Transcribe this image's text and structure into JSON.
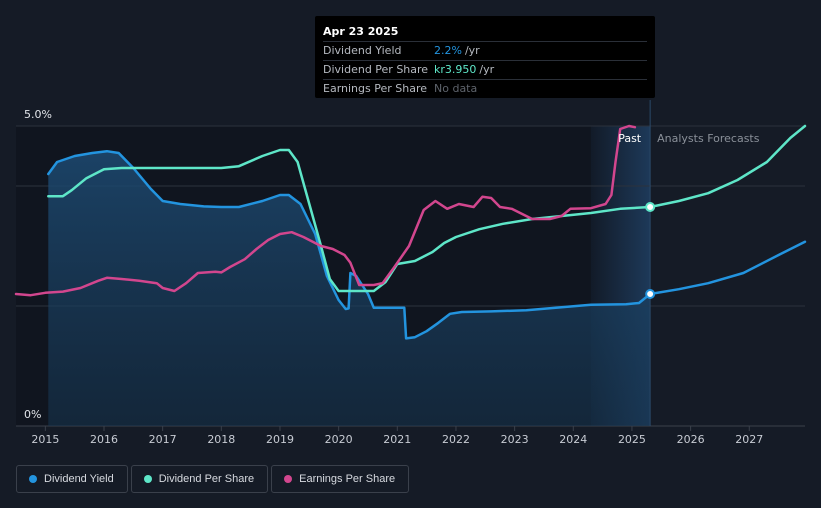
{
  "tooltip": {
    "date": "Apr 23 2025",
    "rows": [
      {
        "label": "Dividend Yield",
        "value": "2.2%",
        "unit": "/yr"
      },
      {
        "label": "Dividend Per Share",
        "value": "kr3.950",
        "unit": "/yr"
      },
      {
        "label": "Earnings Per Share",
        "value": "No data"
      }
    ]
  },
  "legend": [
    {
      "label": "Dividend Yield",
      "color": "#2394df"
    },
    {
      "label": "Dividend Per Share",
      "color": "#5ee6c8"
    },
    {
      "label": "Earnings Per Share",
      "color": "#d2468e"
    }
  ],
  "chart_data": {
    "type": "line",
    "title": "",
    "xlabel": "",
    "ylabel": "",
    "xlim": [
      2014.5,
      2027.95
    ],
    "ylim": [
      0,
      5.0
    ],
    "x_ticks": [
      "2015",
      "2016",
      "2017",
      "2018",
      "2019",
      "2020",
      "2021",
      "2022",
      "2023",
      "2024",
      "2025",
      "2026",
      "2027"
    ],
    "y_tick_labels": [
      {
        "value": 5.0,
        "label": "5.0%"
      },
      {
        "value": 0,
        "label": "0%"
      }
    ],
    "gridlines_y": [
      5.0,
      4.0,
      2.0
    ],
    "regions": {
      "past_label": "Past",
      "forecast_label": "Analysts Forecasts",
      "today": 2025.31,
      "shade_start": 2024.3
    },
    "marker_x": 2025.31,
    "series": [
      {
        "name": "Dividend Yield",
        "color": "#2394df",
        "points": [
          [
            2015.05,
            4.2
          ],
          [
            2015.2,
            4.4
          ],
          [
            2015.5,
            4.5
          ],
          [
            2015.8,
            4.55
          ],
          [
            2016.05,
            4.58
          ],
          [
            2016.25,
            4.55
          ],
          [
            2016.5,
            4.3
          ],
          [
            2016.8,
            3.95
          ],
          [
            2017.0,
            3.75
          ],
          [
            2017.3,
            3.7
          ],
          [
            2017.7,
            3.66
          ],
          [
            2018.0,
            3.65
          ],
          [
            2018.3,
            3.65
          ],
          [
            2018.7,
            3.75
          ],
          [
            2019.0,
            3.85
          ],
          [
            2019.15,
            3.85
          ],
          [
            2019.35,
            3.7
          ],
          [
            2019.6,
            3.2
          ],
          [
            2019.8,
            2.5
          ],
          [
            2020.0,
            2.1
          ],
          [
            2020.12,
            1.95
          ],
          [
            2020.17,
            1.96
          ],
          [
            2020.2,
            2.55
          ],
          [
            2020.3,
            2.5
          ],
          [
            2020.5,
            2.2
          ],
          [
            2020.6,
            1.97
          ],
          [
            2020.8,
            1.97
          ],
          [
            2021.0,
            1.97
          ],
          [
            2021.12,
            1.97
          ],
          [
            2021.15,
            1.46
          ],
          [
            2021.3,
            1.48
          ],
          [
            2021.5,
            1.58
          ],
          [
            2021.7,
            1.72
          ],
          [
            2021.9,
            1.87
          ],
          [
            2022.1,
            1.9
          ],
          [
            2022.6,
            1.91
          ],
          [
            2023.2,
            1.93
          ],
          [
            2023.8,
            1.98
          ],
          [
            2024.3,
            2.02
          ],
          [
            2024.9,
            2.03
          ],
          [
            2025.12,
            2.05
          ],
          [
            2025.31,
            2.2
          ],
          [
            2025.8,
            2.28
          ],
          [
            2026.3,
            2.38
          ],
          [
            2026.9,
            2.55
          ],
          [
            2027.5,
            2.85
          ],
          [
            2027.95,
            3.07
          ]
        ]
      },
      {
        "name": "Dividend Per Share",
        "color": "#5ee6c8",
        "points": [
          [
            2015.05,
            3.83
          ],
          [
            2015.3,
            3.83
          ],
          [
            2015.45,
            3.93
          ],
          [
            2015.7,
            4.13
          ],
          [
            2016.0,
            4.28
          ],
          [
            2016.3,
            4.3
          ],
          [
            2016.7,
            4.3
          ],
          [
            2017.5,
            4.3
          ],
          [
            2018.0,
            4.3
          ],
          [
            2018.3,
            4.33
          ],
          [
            2018.7,
            4.5
          ],
          [
            2019.0,
            4.6
          ],
          [
            2019.15,
            4.6
          ],
          [
            2019.3,
            4.4
          ],
          [
            2019.5,
            3.7
          ],
          [
            2019.7,
            3.0
          ],
          [
            2019.85,
            2.45
          ],
          [
            2020.0,
            2.25
          ],
          [
            2020.3,
            2.25
          ],
          [
            2020.6,
            2.25
          ],
          [
            2020.8,
            2.4
          ],
          [
            2021.0,
            2.7
          ],
          [
            2021.3,
            2.75
          ],
          [
            2021.6,
            2.9
          ],
          [
            2021.8,
            3.05
          ],
          [
            2022.0,
            3.15
          ],
          [
            2022.4,
            3.28
          ],
          [
            2022.8,
            3.37
          ],
          [
            2023.3,
            3.45
          ],
          [
            2023.8,
            3.5
          ],
          [
            2024.3,
            3.55
          ],
          [
            2024.8,
            3.62
          ],
          [
            2025.31,
            3.65
          ],
          [
            2025.8,
            3.75
          ],
          [
            2026.3,
            3.88
          ],
          [
            2026.8,
            4.1
          ],
          [
            2027.3,
            4.4
          ],
          [
            2027.7,
            4.8
          ],
          [
            2027.95,
            5.0
          ]
        ]
      },
      {
        "name": "Earnings Per Share",
        "color": "#d2468e",
        "points": [
          [
            2014.5,
            2.2
          ],
          [
            2014.75,
            2.18
          ],
          [
            2015.0,
            2.22
          ],
          [
            2015.3,
            2.24
          ],
          [
            2015.6,
            2.3
          ],
          [
            2015.9,
            2.42
          ],
          [
            2016.05,
            2.47
          ],
          [
            2016.3,
            2.45
          ],
          [
            2016.6,
            2.42
          ],
          [
            2016.9,
            2.38
          ],
          [
            2017.0,
            2.3
          ],
          [
            2017.2,
            2.25
          ],
          [
            2017.4,
            2.38
          ],
          [
            2017.6,
            2.55
          ],
          [
            2017.9,
            2.57
          ],
          [
            2018.0,
            2.56
          ],
          [
            2018.15,
            2.65
          ],
          [
            2018.4,
            2.78
          ],
          [
            2018.6,
            2.95
          ],
          [
            2018.8,
            3.1
          ],
          [
            2019.0,
            3.2
          ],
          [
            2019.2,
            3.23
          ],
          [
            2019.4,
            3.15
          ],
          [
            2019.7,
            3.0
          ],
          [
            2019.9,
            2.95
          ],
          [
            2020.1,
            2.85
          ],
          [
            2020.2,
            2.72
          ],
          [
            2020.35,
            2.35
          ],
          [
            2020.6,
            2.35
          ],
          [
            2020.75,
            2.38
          ],
          [
            2020.95,
            2.65
          ],
          [
            2021.2,
            3.0
          ],
          [
            2021.45,
            3.6
          ],
          [
            2021.65,
            3.75
          ],
          [
            2021.85,
            3.62
          ],
          [
            2022.05,
            3.7
          ],
          [
            2022.3,
            3.65
          ],
          [
            2022.45,
            3.82
          ],
          [
            2022.6,
            3.8
          ],
          [
            2022.75,
            3.65
          ],
          [
            2022.95,
            3.62
          ],
          [
            2023.3,
            3.45
          ],
          [
            2023.6,
            3.45
          ],
          [
            2023.8,
            3.5
          ],
          [
            2023.95,
            3.62
          ],
          [
            2024.3,
            3.63
          ],
          [
            2024.55,
            3.7
          ],
          [
            2024.65,
            3.85
          ],
          [
            2024.72,
            4.4
          ],
          [
            2024.8,
            4.95
          ],
          [
            2024.95,
            5.0
          ],
          [
            2025.05,
            4.98
          ]
        ]
      }
    ]
  }
}
